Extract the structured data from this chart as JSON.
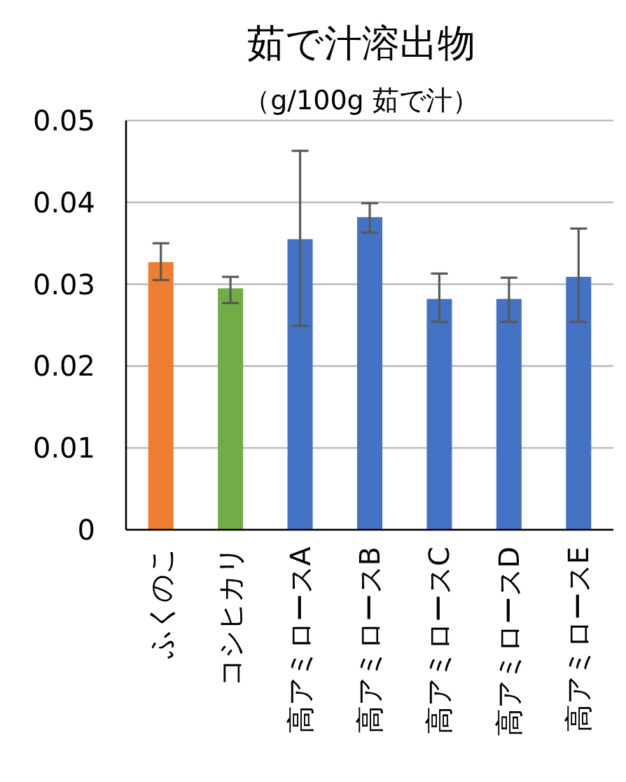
{
  "chart_data": {
    "type": "bar",
    "title": "茹で汁溶出物",
    "subtitle": "（g/100g 茹で汁）",
    "categories": [
      "ふくのこ",
      "コシヒカリ",
      "高アミロースA",
      "高アミロースB",
      "高アミロースC",
      "高アミロースD",
      "高アミロースE"
    ],
    "values": [
      0.0327,
      0.0295,
      0.0355,
      0.0382,
      0.0282,
      0.0282,
      0.0309
    ],
    "colors": [
      "#ed7d31",
      "#70ad47",
      "#4472c4",
      "#4472c4",
      "#4472c4",
      "#4472c4",
      "#4472c4"
    ],
    "errors": [
      [
        0.0305,
        0.035
      ],
      [
        0.0277,
        0.0309
      ],
      [
        0.0249,
        0.0463
      ],
      [
        0.0363,
        0.0399
      ],
      [
        0.0254,
        0.0313
      ],
      [
        0.0254,
        0.0308
      ],
      [
        0.0254,
        0.0368
      ]
    ],
    "ylim": [
      0,
      0.05
    ],
    "yticks": [
      {
        "value": 0,
        "label": "0"
      },
      {
        "value": 0.01,
        "label": "0.01"
      },
      {
        "value": 0.02,
        "label": "0.02"
      },
      {
        "value": 0.03,
        "label": "0.03"
      },
      {
        "value": 0.04,
        "label": "0.04"
      },
      {
        "value": 0.05,
        "label": "0.05"
      }
    ],
    "grid": "y"
  }
}
